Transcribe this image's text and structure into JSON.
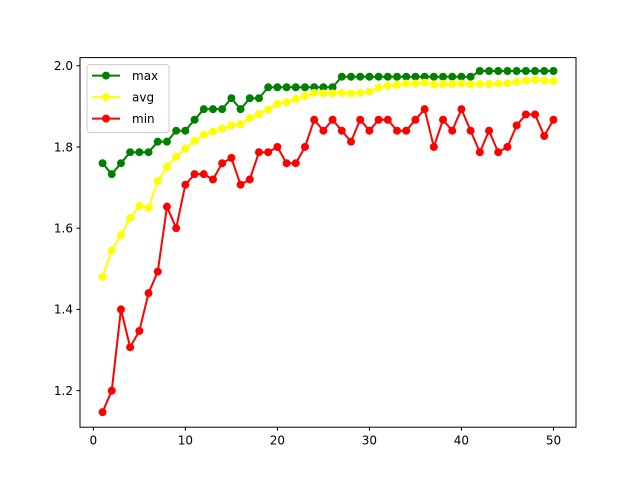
{
  "chart_data": {
    "type": "line",
    "title": "",
    "xlabel": "",
    "ylabel": "",
    "xlim": [
      -1.45,
      52.45
    ],
    "ylim": [
      1.11,
      2.02
    ],
    "xticks": [
      0,
      10,
      20,
      30,
      40,
      50
    ],
    "yticks": [
      1.2,
      1.4,
      1.6,
      1.8,
      2.0
    ],
    "xtick_labels": [
      "0",
      "10",
      "20",
      "30",
      "40",
      "50"
    ],
    "ytick_labels": [
      "1.2",
      "1.4",
      "1.6",
      "1.8",
      "2.0"
    ],
    "grid": false,
    "legend": "top-left",
    "x": [
      1,
      2,
      3,
      4,
      5,
      6,
      7,
      8,
      9,
      10,
      11,
      12,
      13,
      14,
      15,
      16,
      17,
      18,
      19,
      20,
      21,
      22,
      23,
      24,
      25,
      26,
      27,
      28,
      29,
      30,
      31,
      32,
      33,
      34,
      35,
      36,
      37,
      38,
      39,
      40,
      41,
      42,
      43,
      44,
      45,
      46,
      47,
      48,
      49,
      50
    ],
    "series": [
      {
        "name": "max",
        "color": "#008000",
        "values": [
          1.76,
          1.733,
          1.76,
          1.787,
          1.787,
          1.787,
          1.813,
          1.813,
          1.84,
          1.84,
          1.867,
          1.893,
          1.893,
          1.893,
          1.92,
          1.893,
          1.92,
          1.92,
          1.947,
          1.947,
          1.947,
          1.947,
          1.947,
          1.947,
          1.947,
          1.947,
          1.973,
          1.973,
          1.973,
          1.973,
          1.973,
          1.973,
          1.973,
          1.973,
          1.973,
          1.973,
          1.973,
          1.973,
          1.973,
          1.973,
          1.973,
          1.987,
          1.987,
          1.987,
          1.987,
          1.987,
          1.987,
          1.987,
          1.987,
          1.987
        ]
      },
      {
        "name": "avg",
        "color": "#ffff00",
        "values": [
          1.48,
          1.545,
          1.583,
          1.625,
          1.655,
          1.65,
          1.716,
          1.751,
          1.776,
          1.796,
          1.815,
          1.83,
          1.838,
          1.845,
          1.853,
          1.856,
          1.871,
          1.881,
          1.892,
          1.906,
          1.91,
          1.918,
          1.925,
          1.933,
          1.932,
          1.932,
          1.933,
          1.932,
          1.933,
          1.936,
          1.946,
          1.951,
          1.953,
          1.956,
          1.956,
          1.958,
          1.954,
          1.955,
          1.955,
          1.956,
          1.954,
          1.955,
          1.955,
          1.956,
          1.957,
          1.96,
          1.963,
          1.965,
          1.963,
          1.962
        ]
      },
      {
        "name": "min",
        "color": "#ff0000",
        "values": [
          1.147,
          1.2,
          1.4,
          1.307,
          1.347,
          1.44,
          1.493,
          1.653,
          1.6,
          1.707,
          1.733,
          1.733,
          1.72,
          1.76,
          1.773,
          1.707,
          1.72,
          1.787,
          1.787,
          1.8,
          1.76,
          1.76,
          1.8,
          1.867,
          1.84,
          1.867,
          1.84,
          1.813,
          1.867,
          1.84,
          1.867,
          1.867,
          1.84,
          1.84,
          1.867,
          1.893,
          1.8,
          1.867,
          1.84,
          1.893,
          1.84,
          1.787,
          1.84,
          1.787,
          1.8,
          1.853,
          1.88,
          1.88,
          1.827,
          1.867
        ]
      }
    ]
  }
}
